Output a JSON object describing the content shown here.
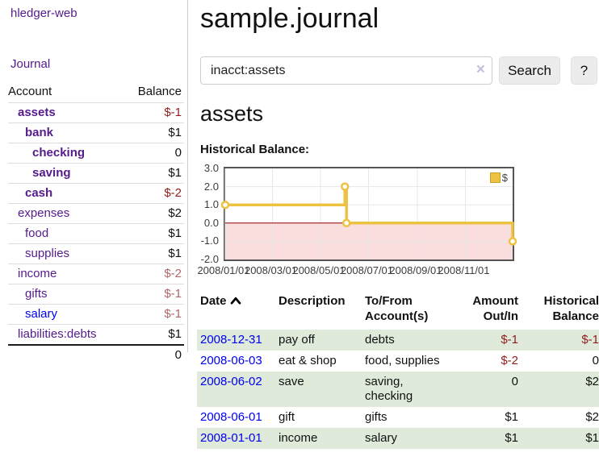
{
  "colors": {
    "link_purple": "#551a8b",
    "link_blue": "#0000ee",
    "negative_strong": "#8f1d1d",
    "negative_muted": "#ad686a",
    "stripe_green": "#dfeada",
    "series_gold": "#edc240"
  },
  "sidebar": {
    "brand": "hledger-web",
    "journal_link": "Journal",
    "accounts": {
      "header_account": "Account",
      "header_balance": "Balance",
      "rows": [
        {
          "account": "assets",
          "balance": "$-1"
        },
        {
          "account": "bank",
          "balance": "$1"
        },
        {
          "account": "checking",
          "balance": "0"
        },
        {
          "account": "saving",
          "balance": "$1"
        },
        {
          "account": "cash",
          "balance": "$-2"
        },
        {
          "account": "expenses",
          "balance": "$2"
        },
        {
          "account": "food",
          "balance": "$1"
        },
        {
          "account": "supplies",
          "balance": "$1"
        },
        {
          "account": "income",
          "balance": "$-2"
        },
        {
          "account": "gifts",
          "balance": "$-1"
        },
        {
          "account": "salary",
          "balance": "$-1"
        },
        {
          "account": "liabilities:debts",
          "balance": "$1"
        }
      ],
      "total": "0"
    }
  },
  "header": {
    "title": "sample.journal"
  },
  "search": {
    "value": "inacct:assets",
    "clear_icon": "×",
    "search_button": "Search",
    "help_button": "?"
  },
  "content": {
    "account_heading": "assets",
    "chart_heading": "Historical Balance:"
  },
  "chart_data": {
    "type": "line",
    "line_style": "step",
    "title": "Historical Balance:",
    "x_domain": [
      "2008-01-01",
      "2008-12-31"
    ],
    "ylim": [
      -2,
      3
    ],
    "y_ticks": [
      {
        "label": "3.0",
        "value": 3
      },
      {
        "label": "2.0",
        "value": 2
      },
      {
        "label": "1.0",
        "value": 1
      },
      {
        "label": "0.0",
        "value": 0
      },
      {
        "label": "-1.0",
        "value": -1
      },
      {
        "label": "-2.0",
        "value": -2
      }
    ],
    "x_ticks": [
      {
        "label": "2008/01/01",
        "date": "2008-01-01"
      },
      {
        "label": "2008/03/01",
        "date": "2008-03-01"
      },
      {
        "label": "2008/05/01",
        "date": "2008-05-01"
      },
      {
        "label": "2008/07/01",
        "date": "2008-07-01"
      },
      {
        "label": "2008/09/01",
        "date": "2008-09-01"
      },
      {
        "label": "2008/11/01",
        "date": "2008-11-01"
      }
    ],
    "series": [
      {
        "name": "$",
        "color": "#edc240",
        "points": [
          {
            "date": "2008-01-01",
            "value": 1
          },
          {
            "date": "2008-06-01",
            "value": 2
          },
          {
            "date": "2008-06-03",
            "value": 0
          },
          {
            "date": "2008-12-31",
            "value": -1
          }
        ]
      }
    ],
    "legend": {
      "position": "top-right",
      "entries": [
        "$"
      ]
    },
    "grid": {
      "border_color": "#545454",
      "line_color": "#e7e7e7",
      "zero_line_color": "#8b0000",
      "negative_region_fill": "#fadddd",
      "background": "#ffffff"
    }
  },
  "register": {
    "headers": {
      "date": "Date",
      "description": "Description",
      "account": "To/From Account(s)",
      "amount": "Amount Out/In",
      "balance": "Historical Balance"
    },
    "rows": [
      {
        "date": "2008-12-31",
        "description": "pay off",
        "accounts": "debts",
        "amount": "$-1",
        "balance": "$-1"
      },
      {
        "date": "2008-06-03",
        "description": "eat & shop",
        "accounts": "food, supplies",
        "amount": "$-2",
        "balance": "0"
      },
      {
        "date": "2008-06-02",
        "description": "save",
        "accounts": "saving, checking",
        "amount": "0",
        "balance": "$2"
      },
      {
        "date": "2008-06-01",
        "description": "gift",
        "accounts": "gifts",
        "amount": "$1",
        "balance": "$2"
      },
      {
        "date": "2008-01-01",
        "description": "income",
        "accounts": "salary",
        "amount": "$1",
        "balance": "$1"
      }
    ]
  }
}
